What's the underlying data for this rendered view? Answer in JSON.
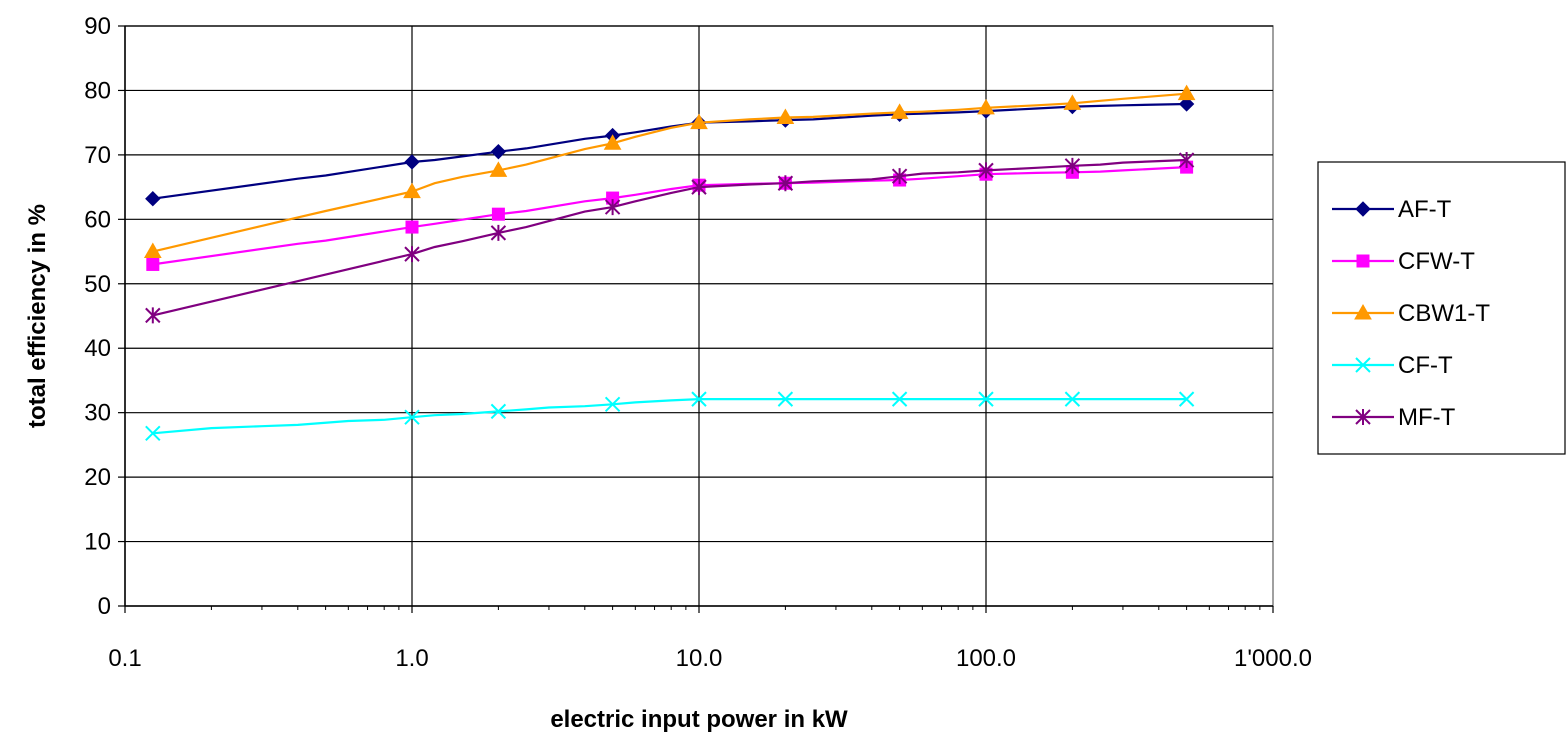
{
  "chart_data": {
    "type": "line",
    "title": "",
    "xlabel": "electric input power in kW",
    "ylabel": "total efficiency in %",
    "x_scale": "log",
    "xlim": [
      0.1,
      1000
    ],
    "ylim": [
      0,
      90
    ],
    "x_ticks": [
      0.1,
      1,
      10,
      100,
      1000
    ],
    "x_tick_labels": [
      "0.1",
      "1.0",
      "10.0",
      "100.0",
      "1'000.0"
    ],
    "y_ticks": [
      0,
      10,
      20,
      30,
      40,
      50,
      60,
      70,
      80,
      90
    ],
    "y_tick_labels": [
      "0",
      "10",
      "20",
      "30",
      "40",
      "50",
      "60",
      "70",
      "80",
      "90"
    ],
    "grid": true,
    "legend_position": "right",
    "x_markers": [
      0.125,
      1,
      2,
      5,
      10,
      20,
      50,
      100,
      200,
      500
    ],
    "series": [
      {
        "name": "AF-T",
        "color": "#000080",
        "marker": "diamond",
        "x": [
          0.125,
          0.4,
          0.5,
          1,
          1.2,
          2,
          2.5,
          4,
          5,
          6,
          8,
          10,
          15,
          20,
          25,
          40,
          50,
          60,
          80,
          100,
          150,
          200,
          250,
          300,
          500
        ],
        "y": [
          63.2,
          66.3,
          66.8,
          68.9,
          69.2,
          70.5,
          71.0,
          72.5,
          73.0,
          73.5,
          74.4,
          75.0,
          75.2,
          75.4,
          75.5,
          76.1,
          76.3,
          76.4,
          76.6,
          76.8,
          77.2,
          77.5,
          77.6,
          77.7,
          77.9
        ]
      },
      {
        "name": "CFW-T",
        "color": "#FF00FF",
        "marker": "square",
        "x": [
          0.125,
          0.4,
          0.5,
          1,
          1.2,
          2,
          2.5,
          4,
          5,
          6,
          8,
          10,
          15,
          20,
          25,
          40,
          50,
          60,
          80,
          100,
          150,
          200,
          250,
          300,
          500
        ],
        "y": [
          53.0,
          56.2,
          56.7,
          58.8,
          59.3,
          60.8,
          61.3,
          62.8,
          63.3,
          63.8,
          64.7,
          65.3,
          65.5,
          65.6,
          65.7,
          66.0,
          66.1,
          66.3,
          66.7,
          67.0,
          67.2,
          67.3,
          67.4,
          67.6,
          68.1
        ]
      },
      {
        "name": "CBW1-T",
        "color": "#FF9900",
        "marker": "triangle",
        "x": [
          0.125,
          0.4,
          0.5,
          1,
          1.2,
          1.5,
          2,
          2.5,
          4,
          5,
          6,
          8,
          10,
          15,
          20,
          25,
          40,
          50,
          60,
          80,
          100,
          150,
          200,
          250,
          300,
          500
        ],
        "y": [
          55.0,
          60.3,
          61.3,
          64.3,
          65.6,
          66.6,
          67.6,
          68.5,
          70.9,
          71.8,
          72.8,
          74.2,
          75.0,
          75.5,
          75.8,
          75.9,
          76.4,
          76.6,
          76.7,
          77.0,
          77.3,
          77.7,
          78.0,
          78.4,
          78.7,
          79.5
        ]
      },
      {
        "name": "CF-T",
        "color": "#00FFFF",
        "marker": "x",
        "x": [
          0.125,
          0.2,
          0.3,
          0.4,
          0.6,
          0.8,
          1,
          1.2,
          1.5,
          2,
          2.5,
          3,
          4,
          5,
          6,
          8,
          10,
          20,
          50,
          100,
          200,
          500
        ],
        "y": [
          26.8,
          27.6,
          27.9,
          28.1,
          28.7,
          28.9,
          29.3,
          29.6,
          29.8,
          30.2,
          30.5,
          30.8,
          31.0,
          31.3,
          31.6,
          31.9,
          32.1,
          32.1,
          32.1,
          32.1,
          32.1,
          32.1
        ]
      },
      {
        "name": "MF-T",
        "color": "#800080",
        "marker": "asterisk",
        "x": [
          0.125,
          1,
          1.2,
          1.5,
          2,
          2.5,
          4,
          5,
          6,
          8,
          10,
          15,
          20,
          25,
          40,
          50,
          60,
          80,
          100,
          150,
          200,
          250,
          300,
          500
        ],
        "y": [
          45.1,
          54.6,
          55.7,
          56.6,
          57.9,
          58.8,
          61.2,
          61.9,
          62.8,
          64.1,
          65.0,
          65.4,
          65.6,
          65.9,
          66.2,
          66.7,
          67.1,
          67.3,
          67.6,
          68.0,
          68.3,
          68.5,
          68.8,
          69.2
        ]
      }
    ]
  }
}
